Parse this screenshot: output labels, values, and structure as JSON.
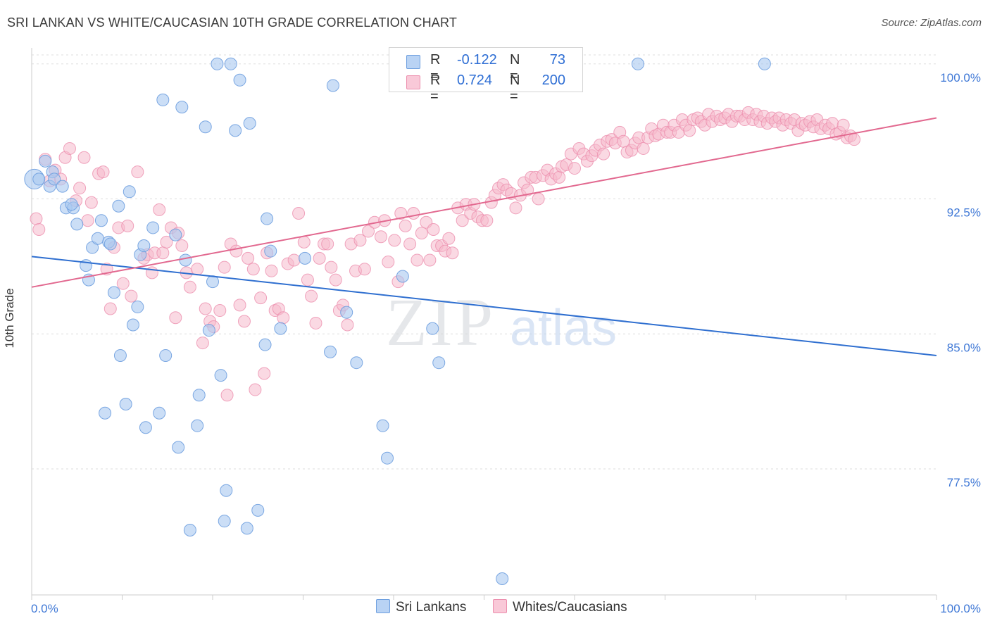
{
  "title": "SRI LANKAN VS WHITE/CAUCASIAN 10TH GRADE CORRELATION CHART",
  "source": "Source: ZipAtlas.com",
  "watermark": {
    "zip": "ZIP",
    "atlas": "atlas"
  },
  "legend": {
    "series1": {
      "r_label": "R =",
      "r_value": "-0.122",
      "n_label": "N =",
      "n_value": "73"
    },
    "series2": {
      "r_label": "R =",
      "r_value": "0.724",
      "n_label": "N =",
      "n_value": "200"
    }
  },
  "colors": {
    "blue_fill": "#a9c8f0",
    "blue_stroke": "#6e9fdf",
    "blue_line": "#2f6fd0",
    "pink_fill": "#f6b9cc",
    "pink_stroke": "#ec8fae",
    "pink_line": "#e2688f",
    "axis_text": "#3f78d6",
    "grid": "#dddddd"
  },
  "chart_data": {
    "type": "scatter",
    "title": "SRI LANKAN VS WHITE/CAUCASIAN 10TH GRADE CORRELATION CHART",
    "xlabel": "",
    "ylabel": "10th Grade",
    "xlim": [
      0,
      100
    ],
    "ylim": [
      70.5,
      100.5
    ],
    "x_tick_labels": [
      "0.0%",
      "100.0%"
    ],
    "y_ticks": [
      77.5,
      85.0,
      92.5,
      100.0
    ],
    "y_tick_labels": [
      "77.5%",
      "85.0%",
      "92.5%",
      "100.0%"
    ],
    "series": [
      {
        "name": "Sri Lankans",
        "r": -0.122,
        "n": 73,
        "trend": {
          "x": [
            0,
            100
          ],
          "y": [
            89.3,
            83.8
          ]
        },
        "points": [
          [
            0.3,
            93.6
          ],
          [
            0.8,
            93.6
          ],
          [
            1.5,
            94.6
          ],
          [
            2.0,
            93.2
          ],
          [
            2.3,
            94.0
          ],
          [
            2.5,
            93.6
          ],
          [
            3.4,
            93.2
          ],
          [
            3.8,
            92.0
          ],
          [
            4.6,
            92.0
          ],
          [
            4.4,
            92.2
          ],
          [
            5.0,
            91.1
          ],
          [
            6.0,
            88.8
          ],
          [
            6.3,
            88.0
          ],
          [
            6.7,
            89.8
          ],
          [
            7.3,
            90.3
          ],
          [
            7.7,
            91.3
          ],
          [
            8.1,
            80.6
          ],
          [
            8.5,
            90.1
          ],
          [
            8.7,
            90.0
          ],
          [
            9.1,
            87.3
          ],
          [
            9.6,
            92.1
          ],
          [
            9.8,
            83.8
          ],
          [
            10.4,
            81.1
          ],
          [
            10.8,
            92.9
          ],
          [
            11.2,
            85.5
          ],
          [
            11.7,
            86.5
          ],
          [
            12.0,
            89.4
          ],
          [
            12.4,
            89.9
          ],
          [
            12.6,
            79.8
          ],
          [
            13.4,
            90.9
          ],
          [
            14.1,
            80.6
          ],
          [
            14.5,
            98.0
          ],
          [
            14.8,
            83.8
          ],
          [
            15.9,
            90.5
          ],
          [
            16.2,
            78.7
          ],
          [
            16.6,
            97.6
          ],
          [
            17.0,
            89.1
          ],
          [
            17.5,
            74.1
          ],
          [
            18.3,
            79.9
          ],
          [
            18.5,
            81.6
          ],
          [
            19.2,
            96.5
          ],
          [
            19.6,
            85.2
          ],
          [
            20.0,
            87.9
          ],
          [
            20.5,
            100.0
          ],
          [
            20.9,
            82.7
          ],
          [
            21.3,
            74.6
          ],
          [
            21.5,
            76.3
          ],
          [
            22.0,
            100.0
          ],
          [
            22.5,
            96.3
          ],
          [
            23.0,
            99.1
          ],
          [
            23.8,
            74.2
          ],
          [
            24.1,
            96.7
          ],
          [
            25.0,
            75.2
          ],
          [
            25.8,
            84.4
          ],
          [
            26.0,
            91.4
          ],
          [
            26.4,
            89.6
          ],
          [
            27.5,
            85.3
          ],
          [
            30.2,
            89.2
          ],
          [
            33.0,
            84.0
          ],
          [
            33.3,
            98.8
          ],
          [
            34.8,
            86.2
          ],
          [
            35.9,
            83.4
          ],
          [
            38.8,
            79.9
          ],
          [
            39.3,
            78.1
          ],
          [
            41.0,
            88.2
          ],
          [
            44.3,
            85.3
          ],
          [
            45.0,
            83.4
          ],
          [
            52.0,
            71.4
          ],
          [
            67.0,
            100.0
          ],
          [
            81.0,
            100.0
          ]
        ]
      },
      {
        "name": "Whites/Caucasians",
        "r": 0.724,
        "n": 200,
        "trend": {
          "x": [
            0,
            100
          ],
          "y": [
            87.6,
            97.0
          ]
        },
        "points": [
          [
            0.5,
            91.4
          ],
          [
            0.8,
            90.8
          ],
          [
            1.5,
            94.7
          ],
          [
            2.0,
            93.5
          ],
          [
            2.6,
            94.1
          ],
          [
            3.2,
            93.6
          ],
          [
            3.7,
            94.8
          ],
          [
            4.2,
            95.3
          ],
          [
            4.9,
            92.4
          ],
          [
            5.3,
            93.1
          ],
          [
            5.8,
            94.8
          ],
          [
            6.2,
            91.3
          ],
          [
            6.6,
            92.3
          ],
          [
            7.4,
            93.9
          ],
          [
            7.9,
            94.0
          ],
          [
            8.3,
            88.6
          ],
          [
            8.7,
            86.4
          ],
          [
            9.1,
            89.8
          ],
          [
            9.6,
            90.9
          ],
          [
            10.1,
            87.8
          ],
          [
            10.6,
            91.0
          ],
          [
            11.0,
            87.1
          ],
          [
            11.7,
            94.0
          ],
          [
            12.4,
            89.2
          ],
          [
            12.8,
            89.4
          ],
          [
            13.3,
            88.4
          ],
          [
            13.6,
            89.5
          ],
          [
            14.1,
            91.9
          ],
          [
            14.5,
            89.5
          ],
          [
            14.9,
            90.1
          ],
          [
            15.4,
            90.9
          ],
          [
            15.9,
            85.9
          ],
          [
            16.2,
            90.6
          ],
          [
            16.6,
            89.9
          ],
          [
            17.1,
            88.4
          ],
          [
            17.5,
            87.6
          ],
          [
            18.3,
            88.6
          ],
          [
            18.9,
            84.5
          ],
          [
            19.2,
            86.4
          ],
          [
            19.7,
            85.7
          ],
          [
            20.1,
            85.4
          ],
          [
            20.8,
            86.3
          ],
          [
            21.3,
            88.7
          ],
          [
            21.6,
            81.6
          ],
          [
            22.0,
            90.0
          ],
          [
            22.6,
            89.6
          ],
          [
            23.0,
            86.6
          ],
          [
            23.5,
            85.7
          ],
          [
            23.9,
            89.2
          ],
          [
            24.5,
            88.6
          ],
          [
            24.7,
            81.9
          ],
          [
            25.3,
            87.0
          ],
          [
            25.7,
            82.8
          ],
          [
            26.0,
            89.5
          ],
          [
            26.5,
            88.5
          ],
          [
            26.9,
            86.3
          ],
          [
            27.3,
            86.4
          ],
          [
            27.8,
            85.9
          ],
          [
            28.3,
            88.9
          ],
          [
            29.0,
            89.1
          ],
          [
            29.5,
            91.7
          ],
          [
            30.1,
            90.1
          ],
          [
            30.5,
            88.0
          ],
          [
            30.9,
            87.1
          ],
          [
            31.4,
            85.6
          ],
          [
            31.8,
            89.2
          ],
          [
            32.3,
            90.0
          ],
          [
            32.7,
            90.0
          ],
          [
            33.1,
            88.7
          ],
          [
            33.6,
            88.0
          ],
          [
            34.0,
            86.3
          ],
          [
            34.4,
            86.6
          ],
          [
            34.9,
            85.5
          ],
          [
            35.3,
            90.0
          ],
          [
            35.8,
            88.5
          ],
          [
            36.3,
            90.2
          ],
          [
            36.8,
            88.6
          ],
          [
            37.2,
            90.7
          ],
          [
            37.9,
            91.2
          ],
          [
            38.6,
            90.4
          ],
          [
            39.0,
            91.3
          ],
          [
            39.4,
            89.0
          ],
          [
            40.1,
            90.2
          ],
          [
            40.5,
            87.9
          ],
          [
            40.8,
            91.7
          ],
          [
            41.3,
            91.0
          ],
          [
            41.8,
            90.0
          ],
          [
            42.2,
            91.7
          ],
          [
            42.6,
            89.1
          ],
          [
            43.1,
            90.6
          ],
          [
            43.6,
            91.2
          ],
          [
            44.0,
            89.1
          ],
          [
            44.4,
            90.8
          ],
          [
            44.8,
            89.9
          ],
          [
            45.3,
            89.9
          ],
          [
            45.7,
            89.6
          ],
          [
            46.1,
            90.3
          ],
          [
            46.5,
            89.5
          ],
          [
            47.1,
            92.0
          ],
          [
            47.6,
            91.3
          ],
          [
            48.0,
            92.2
          ],
          [
            48.5,
            91.7
          ],
          [
            48.9,
            92.2
          ],
          [
            49.3,
            91.5
          ],
          [
            49.8,
            91.3
          ],
          [
            50.3,
            91.3
          ],
          [
            50.8,
            92.3
          ],
          [
            51.2,
            92.7
          ],
          [
            51.6,
            93.1
          ],
          [
            52.1,
            93.3
          ],
          [
            52.5,
            93.0
          ],
          [
            53.0,
            92.8
          ],
          [
            53.5,
            92.0
          ],
          [
            54.0,
            92.7
          ],
          [
            54.4,
            93.4
          ],
          [
            54.8,
            93.0
          ],
          [
            55.2,
            93.7
          ],
          [
            55.7,
            93.7
          ],
          [
            56.0,
            92.5
          ],
          [
            56.5,
            93.8
          ],
          [
            57.0,
            94.1
          ],
          [
            57.4,
            93.6
          ],
          [
            57.9,
            93.9
          ],
          [
            58.3,
            93.7
          ],
          [
            58.6,
            94.3
          ],
          [
            59.1,
            94.4
          ],
          [
            59.6,
            95.0
          ],
          [
            60.0,
            94.2
          ],
          [
            60.5,
            95.3
          ],
          [
            61.0,
            95.0
          ],
          [
            61.4,
            94.6
          ],
          [
            61.9,
            94.9
          ],
          [
            62.3,
            95.2
          ],
          [
            62.8,
            95.5
          ],
          [
            63.2,
            95.0
          ],
          [
            63.6,
            95.7
          ],
          [
            64.1,
            95.8
          ],
          [
            64.5,
            95.6
          ],
          [
            65.0,
            96.2
          ],
          [
            65.4,
            95.7
          ],
          [
            65.8,
            95.1
          ],
          [
            66.3,
            95.2
          ],
          [
            66.7,
            95.6
          ],
          [
            67.1,
            95.9
          ],
          [
            67.6,
            95.3
          ],
          [
            68.1,
            95.9
          ],
          [
            68.5,
            96.4
          ],
          [
            68.9,
            96.0
          ],
          [
            69.3,
            96.1
          ],
          [
            69.8,
            96.6
          ],
          [
            70.2,
            96.2
          ],
          [
            70.6,
            96.2
          ],
          [
            71.0,
            96.6
          ],
          [
            71.5,
            96.2
          ],
          [
            71.9,
            96.9
          ],
          [
            72.3,
            96.6
          ],
          [
            72.7,
            96.3
          ],
          [
            73.1,
            96.9
          ],
          [
            73.6,
            97.0
          ],
          [
            74.0,
            96.8
          ],
          [
            74.4,
            96.6
          ],
          [
            74.8,
            97.2
          ],
          [
            75.2,
            96.8
          ],
          [
            75.7,
            97.1
          ],
          [
            76.1,
            96.9
          ],
          [
            76.6,
            97.0
          ],
          [
            77.0,
            97.2
          ],
          [
            77.4,
            96.8
          ],
          [
            77.9,
            97.1
          ],
          [
            78.3,
            97.1
          ],
          [
            78.8,
            96.9
          ],
          [
            79.2,
            97.3
          ],
          [
            79.7,
            96.9
          ],
          [
            80.1,
            97.2
          ],
          [
            80.5,
            96.8
          ],
          [
            80.9,
            97.1
          ],
          [
            81.3,
            96.7
          ],
          [
            81.8,
            97.0
          ],
          [
            82.2,
            96.8
          ],
          [
            82.6,
            97.0
          ],
          [
            83.0,
            96.6
          ],
          [
            83.4,
            96.9
          ],
          [
            83.9,
            96.7
          ],
          [
            84.3,
            96.9
          ],
          [
            84.7,
            96.3
          ],
          [
            85.1,
            96.7
          ],
          [
            85.5,
            96.6
          ],
          [
            86.0,
            96.8
          ],
          [
            86.4,
            96.5
          ],
          [
            86.8,
            96.9
          ],
          [
            87.2,
            96.4
          ],
          [
            87.7,
            96.6
          ],
          [
            88.1,
            96.4
          ],
          [
            88.5,
            96.7
          ],
          [
            88.9,
            96.1
          ],
          [
            89.3,
            96.2
          ],
          [
            89.7,
            96.6
          ],
          [
            90.1,
            95.9
          ],
          [
            90.5,
            96.0
          ],
          [
            90.9,
            95.8
          ]
        ]
      }
    ]
  }
}
